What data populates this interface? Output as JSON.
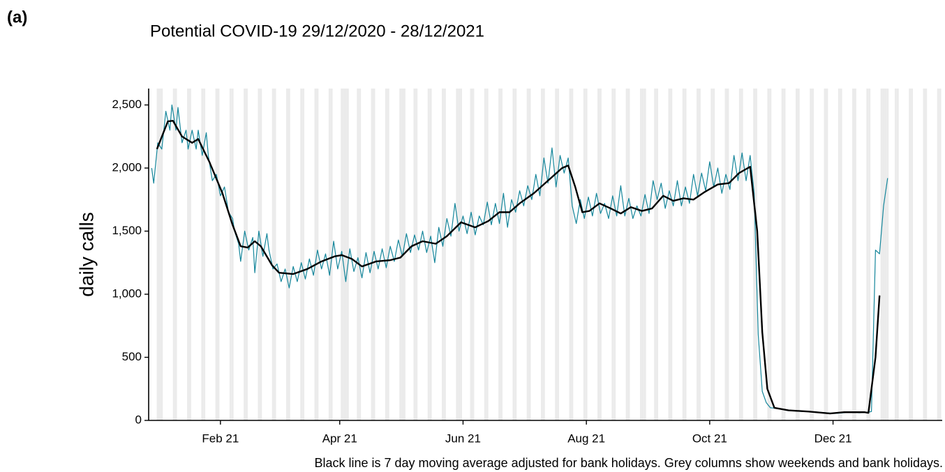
{
  "panel_label": "(a)",
  "chart_data": {
    "type": "line",
    "title": "Potential COVID-19 29/12/2020 - 28/12/2021",
    "y_label": "daily calls",
    "caption": "Black line is 7 day moving average adjusted for bank holidays. Grey columns show weekends and bank holidays.",
    "xlim": [
      -1.5,
      391
    ],
    "xticks": [
      {
        "value": 34,
        "label": "Feb 21"
      },
      {
        "value": 93,
        "label": "Apr 21"
      },
      {
        "value": 154,
        "label": "Jun 21"
      },
      {
        "value": 215,
        "label": "Aug 21"
      },
      {
        "value": 276,
        "label": "Oct 21"
      },
      {
        "value": 337,
        "label": "Dec 21"
      }
    ],
    "ylim": [
      0,
      2630
    ],
    "yticks": [
      0,
      500,
      {
        "value": 1000,
        "label": "1,000"
      },
      {
        "value": 1500,
        "label": "1,500"
      },
      {
        "value": 2000,
        "label": "2,000"
      },
      {
        "value": 2500,
        "label": "2,500"
      }
    ],
    "shaded_days": [
      3,
      4,
      5,
      11,
      12,
      18,
      19,
      25,
      26,
      32,
      33,
      39,
      40,
      46,
      47,
      53,
      54,
      60,
      61,
      67,
      68,
      74,
      75,
      81,
      82,
      88,
      89,
      94,
      95,
      96,
      97,
      102,
      103,
      109,
      110,
      116,
      117,
      123,
      124,
      125,
      130,
      131,
      137,
      138,
      144,
      145,
      151,
      152,
      153,
      158,
      159,
      165,
      166,
      172,
      173,
      179,
      180,
      186,
      187,
      193,
      194,
      200,
      201,
      207,
      208,
      214,
      215,
      221,
      222,
      228,
      229,
      235,
      236,
      242,
      243,
      244,
      249,
      250,
      256,
      257,
      263,
      264,
      270,
      271,
      277,
      278,
      284,
      285,
      291,
      292,
      298,
      299,
      305,
      306,
      312,
      313,
      319,
      320,
      326,
      327,
      333,
      334,
      340,
      341,
      347,
      348,
      354,
      355,
      361,
      362,
      363,
      364,
      368,
      369,
      375,
      376,
      382,
      383,
      389,
      390
    ],
    "shade_color": "#ebebeb",
    "series": [
      {
        "color": "#15869b",
        "x": [
          0,
          1,
          3,
          5,
          7,
          9,
          10,
          12,
          13,
          15,
          17,
          18,
          20,
          22,
          23,
          25,
          27,
          28,
          30,
          32,
          34,
          36,
          38,
          40,
          41,
          43,
          44,
          46,
          48,
          50,
          51,
          53,
          55,
          57,
          58,
          60,
          62,
          64,
          66,
          68,
          70,
          72,
          74,
          76,
          78,
          80,
          82,
          84,
          86,
          88,
          90,
          92,
          94,
          96,
          98,
          100,
          102,
          104,
          106,
          108,
          110,
          112,
          114,
          116,
          118,
          120,
          122,
          124,
          126,
          128,
          130,
          132,
          134,
          136,
          138,
          140,
          142,
          144,
          146,
          148,
          150,
          152,
          154,
          156,
          158,
          160,
          162,
          164,
          166,
          168,
          170,
          172,
          174,
          176,
          178,
          180,
          182,
          184,
          186,
          188,
          190,
          192,
          194,
          196,
          198,
          200,
          202,
          204,
          206,
          208,
          210,
          212,
          214,
          216,
          218,
          220,
          222,
          224,
          226,
          228,
          230,
          232,
          234,
          236,
          238,
          240,
          242,
          244,
          246,
          248,
          250,
          252,
          254,
          256,
          258,
          260,
          262,
          264,
          266,
          268,
          270,
          272,
          274,
          276,
          278,
          280,
          282,
          284,
          286,
          288,
          290,
          292,
          294,
          296,
          298,
          300,
          302,
          304,
          306,
          310,
          314,
          318,
          322,
          326,
          330,
          334,
          338,
          342,
          346,
          350,
          354,
          356,
          358,
          360,
          362,
          364
        ],
        "values": [
          2000,
          1880,
          2200,
          2150,
          2450,
          2300,
          2500,
          2300,
          2480,
          2200,
          2300,
          2150,
          2300,
          2150,
          2300,
          2100,
          2280,
          2100,
          1900,
          1950,
          1780,
          1850,
          1650,
          1600,
          1500,
          1400,
          1260,
          1500,
          1350,
          1450,
          1170,
          1500,
          1300,
          1480,
          1350,
          1200,
          1240,
          1100,
          1200,
          1050,
          1220,
          1100,
          1250,
          1120,
          1280,
          1150,
          1350,
          1200,
          1320,
          1150,
          1420,
          1200,
          1340,
          1100,
          1360,
          1180,
          1290,
          1130,
          1330,
          1170,
          1340,
          1200,
          1360,
          1210,
          1380,
          1260,
          1430,
          1300,
          1480,
          1330,
          1470,
          1350,
          1500,
          1330,
          1460,
          1250,
          1530,
          1380,
          1600,
          1460,
          1720,
          1500,
          1620,
          1480,
          1650,
          1470,
          1620,
          1550,
          1730,
          1550,
          1720,
          1560,
          1800,
          1530,
          1750,
          1650,
          1820,
          1700,
          1860,
          1750,
          1950,
          1780,
          2080,
          1880,
          2160,
          1850,
          2100,
          1960,
          2080,
          1700,
          1560,
          1750,
          1600,
          1770,
          1620,
          1800,
          1640,
          1720,
          1600,
          1780,
          1620,
          1860,
          1620,
          1760,
          1600,
          1700,
          1620,
          1790,
          1640,
          1900,
          1750,
          1880,
          1680,
          1820,
          1700,
          1900,
          1700,
          1850,
          1720,
          1950,
          1780,
          1960,
          1820,
          2050,
          1850,
          2000,
          1800,
          1950,
          1830,
          2100,
          1900,
          2120,
          1900,
          2100,
          1800,
          680,
          230,
          140,
          100,
          95,
          80,
          75,
          70,
          70,
          65,
          60,
          55,
          60,
          65,
          60,
          65,
          70,
          1350,
          1320,
          1700,
          1920
        ]
      },
      {
        "color": "#000000",
        "x": [
          2.6,
          8,
          10.5,
          15,
          20,
          23,
          28.5,
          35,
          40,
          44,
          47.5,
          51,
          54,
          59.5,
          63,
          70,
          77,
          84,
          90.5,
          94,
          99,
          104,
          111,
          118,
          123,
          128.5,
          134,
          140.5,
          146,
          153,
          160,
          166.5,
          172,
          177,
          182,
          189,
          196,
          203,
          206,
          209.5,
          213,
          216.5,
          221.5,
          227,
          232,
          237,
          242.5,
          247.5,
          253,
          258,
          263,
          268,
          273.5,
          280,
          285.5,
          290.5,
          296,
          299.5,
          302,
          304.5,
          308,
          315,
          325,
          335.5,
          342.5,
          352.5,
          354.5,
          358,
          360
        ],
        "values": [
          2150,
          2370,
          2375,
          2250,
          2200,
          2230,
          2050,
          1800,
          1550,
          1380,
          1370,
          1420,
          1380,
          1230,
          1170,
          1160,
          1200,
          1260,
          1300,
          1310,
          1280,
          1220,
          1260,
          1270,
          1290,
          1380,
          1420,
          1400,
          1460,
          1570,
          1530,
          1580,
          1650,
          1650,
          1720,
          1800,
          1900,
          2000,
          2020,
          1850,
          1650,
          1660,
          1720,
          1680,
          1640,
          1690,
          1660,
          1680,
          1780,
          1740,
          1760,
          1750,
          1810,
          1870,
          1880,
          1960,
          2010,
          1500,
          700,
          250,
          100,
          80,
          70,
          55,
          65,
          65,
          60,
          500,
          990
        ]
      }
    ]
  }
}
